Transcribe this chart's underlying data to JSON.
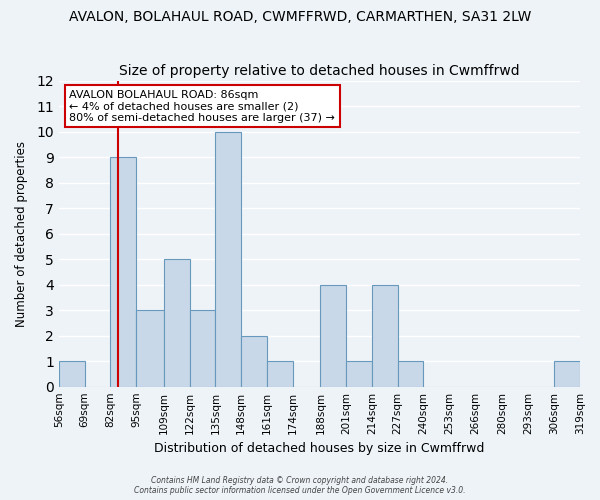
{
  "title": "AVALON, BOLAHAUL ROAD, CWMFFRWD, CARMARTHEN, SA31 2LW",
  "subtitle": "Size of property relative to detached houses in Cwmffrwd",
  "xlabel": "Distribution of detached houses by size in Cwmffrwd",
  "ylabel": "Number of detached properties",
  "bin_edges": [
    56,
    69,
    82,
    95,
    109,
    122,
    135,
    148,
    161,
    174,
    188,
    201,
    214,
    227,
    240,
    253,
    266,
    280,
    293,
    306,
    319
  ],
  "bin_labels": [
    "56sqm",
    "69sqm",
    "82sqm",
    "95sqm",
    "109sqm",
    "122sqm",
    "135sqm",
    "148sqm",
    "161sqm",
    "174sqm",
    "188sqm",
    "201sqm",
    "214sqm",
    "227sqm",
    "240sqm",
    "253sqm",
    "266sqm",
    "280sqm",
    "293sqm",
    "306sqm",
    "319sqm"
  ],
  "counts": [
    1,
    0,
    9,
    3,
    5,
    3,
    10,
    2,
    1,
    0,
    4,
    1,
    4,
    1,
    0,
    0,
    0,
    0,
    0,
    1
  ],
  "bar_color": "#c8d8e8",
  "bar_edge_color": "#6699bb",
  "property_line_x": 86,
  "property_line_color": "#cc0000",
  "ylim": [
    0,
    12
  ],
  "yticks": [
    0,
    1,
    2,
    3,
    4,
    5,
    6,
    7,
    8,
    9,
    10,
    11,
    12
  ],
  "annotation_title": "AVALON BOLAHAUL ROAD: 86sqm",
  "annotation_line1": "← 4% of detached houses are smaller (2)",
  "annotation_line2": "80% of semi-detached houses are larger (37) →",
  "annotation_box_color": "#ffffff",
  "annotation_box_edge": "#cc0000",
  "footer_line1": "Contains HM Land Registry data © Crown copyright and database right 2024.",
  "footer_line2": "Contains public sector information licensed under the Open Government Licence v3.0.",
  "background_color": "#eef3f8",
  "plot_bg_color": "#eef3f8",
  "grid_color": "#ffffff",
  "title_fontsize": 10,
  "subtitle_fontsize": 10
}
